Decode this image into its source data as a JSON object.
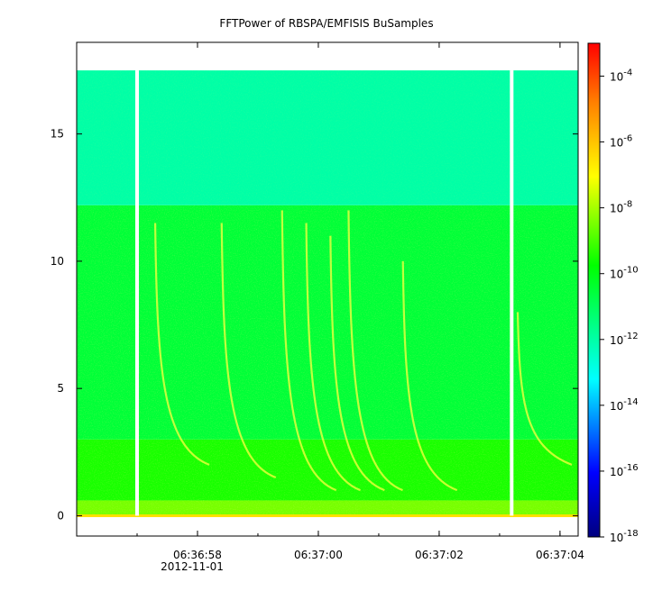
{
  "chart_data": {
    "type": "heatmap",
    "title": "FFTPower of RBSPA/EMFISIS  BuSamples",
    "xlabel": "",
    "ylabel": "",
    "x_ticks": [
      "06:36:58",
      "06:37:00",
      "06:37:02",
      "06:37:04"
    ],
    "x_date_label": "2012-11-01",
    "y_ticks": [
      0,
      5,
      10,
      15
    ],
    "ylim": [
      -0.8,
      18.6
    ],
    "xlim": [
      "06:36:56.0",
      "06:37:04.3"
    ],
    "data_gaps": [
      "06:36:57.0",
      "06:37:03.2"
    ],
    "colorbar": {
      "scale": "log",
      "range": [
        1e-18,
        0.001
      ],
      "tick_base": "10",
      "tick_exponents": [
        "-4",
        "-6",
        "-8",
        "-10",
        "-12",
        "-14",
        "-16",
        "-18"
      ],
      "colormap": [
        "#00007f",
        "#0000ff",
        "#00ffff",
        "#00ff00",
        "#ffff00",
        "#ff0000"
      ]
    },
    "bands": [
      {
        "y_from": 0,
        "y_to": 0.6,
        "level_exp": -8.5
      },
      {
        "y_from": 0.6,
        "y_to": 3,
        "level_exp": -9.5
      },
      {
        "y_from": 3,
        "y_to": 12.2,
        "level_exp": -10.5
      },
      {
        "y_from": 12.2,
        "y_to": 17.5,
        "level_exp": -12.0
      }
    ],
    "features": [
      {
        "kind": "whistler",
        "x": "06:36:57.3",
        "y_from": 2.0,
        "y_to": 11.5
      },
      {
        "kind": "whistler",
        "x": "06:36:58.4",
        "y_from": 1.5,
        "y_to": 11.5
      },
      {
        "kind": "whistler",
        "x": "06:36:59.4",
        "y_from": 1.0,
        "y_to": 12.0
      },
      {
        "kind": "whistler",
        "x": "06:36:59.8",
        "y_from": 1.0,
        "y_to": 11.5
      },
      {
        "kind": "whistler",
        "x": "06:37:00.2",
        "y_from": 1.0,
        "y_to": 11.0
      },
      {
        "kind": "whistler",
        "x": "06:37:00.5",
        "y_from": 1.0,
        "y_to": 12.0
      },
      {
        "kind": "whistler",
        "x": "06:37:01.4",
        "y_from": 1.0,
        "y_to": 10.0
      },
      {
        "kind": "whistler",
        "x": "06:37:03.3",
        "y_from": 2.0,
        "y_to": 8.0
      }
    ],
    "colors": {
      "frame": "#000000",
      "background": "#ffffff",
      "gap": "#ffffff"
    }
  }
}
